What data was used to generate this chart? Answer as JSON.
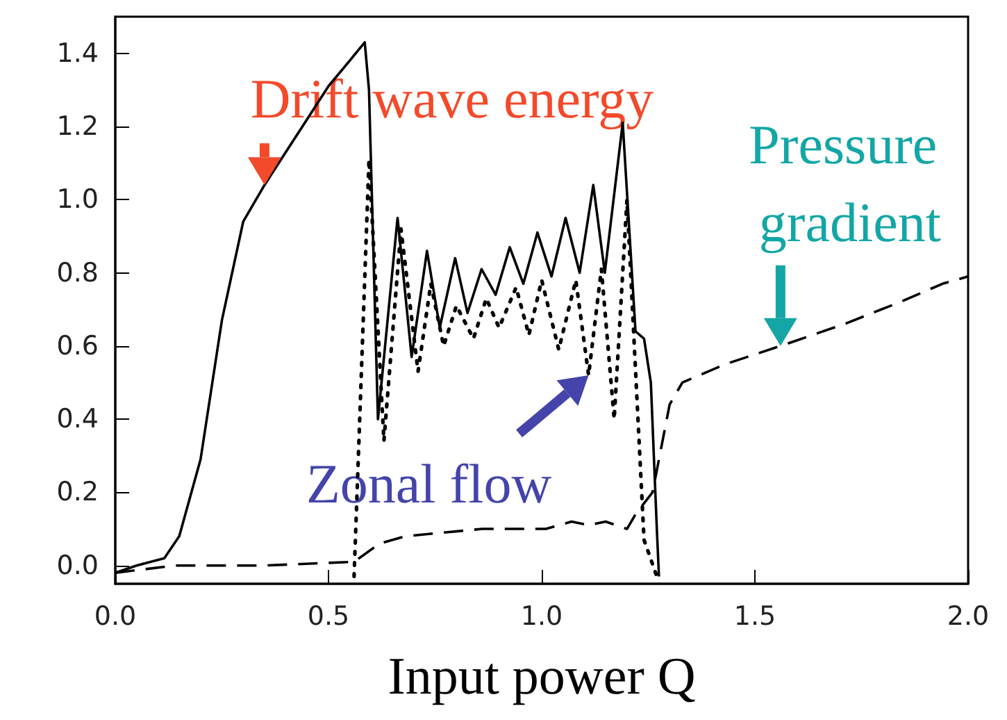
{
  "chart_data": {
    "type": "line",
    "xlabel": "Input power Q",
    "xlim": [
      0,
      2
    ],
    "ylim": [
      -0.05,
      1.5
    ],
    "xticks": [
      {
        "value": 0,
        "label": "0.0"
      },
      {
        "value": 0.5,
        "label": "0.5"
      },
      {
        "value": 1,
        "label": "1.0"
      },
      {
        "value": 1.5,
        "label": "1.5"
      },
      {
        "value": 2,
        "label": "2.0"
      }
    ],
    "yticks": [
      {
        "value": 0,
        "label": "0.0"
      },
      {
        "value": 0.2,
        "label": "0.2"
      },
      {
        "value": 0.4,
        "label": "0.4"
      },
      {
        "value": 0.6,
        "label": "0.6"
      },
      {
        "value": 0.8,
        "label": "0.8"
      },
      {
        "value": 1,
        "label": "1.0"
      },
      {
        "value": 1.2,
        "label": "1.2"
      },
      {
        "value": 1.4,
        "label": "1.4"
      }
    ],
    "grid": false,
    "marker": "none",
    "series": [
      {
        "color": "#000000",
        "line_style": "solid",
        "x": [
          0,
          0.05,
          0.115,
          0.15,
          0.2,
          0.25,
          0.3,
          0.35,
          0.4,
          0.45,
          0.5,
          0.55,
          0.585,
          0.595,
          0.616,
          0.662,
          0.695,
          0.731,
          0.761,
          0.797,
          0.826,
          0.859,
          0.892,
          0.925,
          0.957,
          0.99,
          1.023,
          1.056,
          1.089,
          1.121,
          1.148,
          1.19,
          1.22,
          1.24,
          1.256,
          1.27,
          1.275
        ],
        "values": [
          -0.02,
          0,
          0.02,
          0.08,
          0.29,
          0.67,
          0.94,
          1.04,
          1.13,
          1.22,
          1.31,
          1.38,
          1.43,
          1.3,
          0.4,
          0.95,
          0.57,
          0.86,
          0.65,
          0.84,
          0.69,
          0.81,
          0.74,
          0.87,
          0.77,
          0.91,
          0.79,
          0.95,
          0.8,
          1.04,
          0.8,
          1.21,
          0.64,
          0.62,
          0.5,
          0.1,
          -0.03
        ]
      },
      {
        "color": "#000000",
        "line_style": "dotted",
        "x": [
          0.56,
          0.595,
          0.63,
          0.67,
          0.71,
          0.74,
          0.77,
          0.8,
          0.84,
          0.87,
          0.9,
          0.94,
          0.97,
          1,
          1.04,
          1.08,
          1.11,
          1.14,
          1.17,
          1.2,
          1.24,
          1.27
        ],
        "values": [
          -0.03,
          1.11,
          0.34,
          0.92,
          0.53,
          0.77,
          0.6,
          0.71,
          0.62,
          0.73,
          0.65,
          0.76,
          0.63,
          0.78,
          0.59,
          0.78,
          0.52,
          0.81,
          0.4,
          1.0,
          0.07,
          -0.03
        ]
      },
      {
        "color": "#000000",
        "line_style": "dashed",
        "x": [
          0,
          0.14,
          0.35,
          0.56,
          0.62,
          0.68,
          0.77,
          0.86,
          0.91,
          1.01,
          1.07,
          1.11,
          1.15,
          1.2,
          1.22,
          1.26,
          1.285,
          1.3,
          1.33,
          1.43,
          1.56,
          1.71,
          1.84,
          1.94,
          2
        ],
        "values": [
          -0.02,
          0,
          0,
          0.01,
          0.06,
          0.08,
          0.09,
          0.1,
          0.1,
          0.1,
          0.12,
          0.11,
          0.12,
          0.1,
          0.14,
          0.2,
          0.35,
          0.44,
          0.5,
          0.55,
          0.6,
          0.66,
          0.72,
          0.77,
          0.79
        ]
      }
    ],
    "annotations": [
      {
        "text": "Drift wave energy",
        "x": 0.35,
        "y": 1.04
      },
      {
        "text": "Zonal flow",
        "x": 1.11,
        "y": 0.52
      },
      {
        "text": "Pressure gradient",
        "x": 1.56,
        "y": 0.6
      }
    ]
  }
}
